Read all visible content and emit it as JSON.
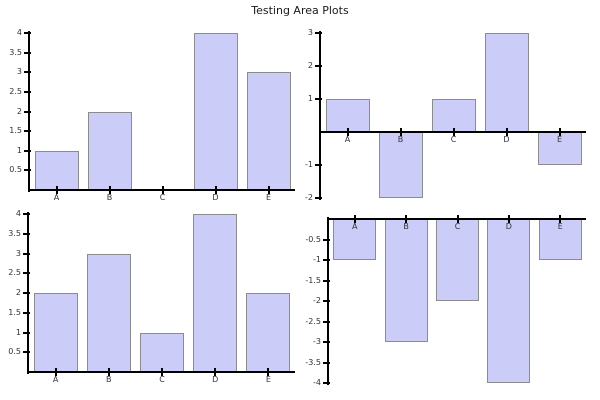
{
  "page": {
    "title": "Testing Area Plots"
  },
  "styles": {
    "background": "#ffffff",
    "title_color": "#1a1a1a",
    "bar_fill": "#ccccf8",
    "bar_border": "#8c8c8c",
    "axis_color": "#000000",
    "label_color": "#333333"
  },
  "chart_data": [
    {
      "type": "bar",
      "position": "top-left",
      "title": "",
      "xlabel": "",
      "ylabel": "",
      "categories": [
        "A",
        "B",
        "C",
        "D",
        "E"
      ],
      "values": [
        1,
        2,
        0,
        4,
        3
      ],
      "ylim": [
        0,
        4
      ],
      "ytick_values": [
        0.5,
        1,
        1.5,
        2,
        2.5,
        3,
        3.5,
        4
      ],
      "ytick_labels": [
        "0.5",
        "1",
        "1.5",
        "2",
        "2.5",
        "3",
        "3.5",
        "4"
      ],
      "grid": false,
      "legend": "none"
    },
    {
      "type": "bar",
      "position": "top-right",
      "title": "",
      "xlabel": "",
      "ylabel": "",
      "categories": [
        "A",
        "B",
        "C",
        "D",
        "E"
      ],
      "values": [
        1,
        -2,
        1,
        3,
        -1
      ],
      "ylim": [
        -2,
        3
      ],
      "ytick_values": [
        -2,
        -1,
        1,
        2,
        3
      ],
      "ytick_labels": [
        "-2",
        "-1",
        "1",
        "2",
        "3"
      ],
      "grid": false,
      "legend": "none"
    },
    {
      "type": "bar",
      "position": "bottom-left",
      "title": "",
      "xlabel": "",
      "ylabel": "",
      "categories": [
        "A",
        "B",
        "C",
        "D",
        "E"
      ],
      "values": [
        2,
        3,
        1,
        4,
        2
      ],
      "ylim": [
        0,
        4
      ],
      "ytick_values": [
        0.5,
        1,
        1.5,
        2,
        2.5,
        3,
        3.5,
        4
      ],
      "ytick_labels": [
        "0.5",
        "1",
        "1.5",
        "2",
        "2.5",
        "3",
        "3.5",
        "4"
      ],
      "grid": false,
      "legend": "none"
    },
    {
      "type": "bar",
      "position": "bottom-right",
      "title": "",
      "xlabel": "",
      "ylabel": "",
      "categories": [
        "A",
        "B",
        "C",
        "D",
        "E"
      ],
      "values": [
        -1,
        -3,
        -2,
        -4,
        -1
      ],
      "ylim": [
        -4,
        0
      ],
      "ytick_values": [
        -4,
        -3.5,
        -3,
        -2.5,
        -2,
        -1.5,
        -1,
        -0.5
      ],
      "ytick_labels": [
        "-4",
        "-3.5",
        "-3",
        "-2.5",
        "-2",
        "-1.5",
        "-1",
        "-0.5"
      ],
      "grid": false,
      "legend": "none"
    }
  ]
}
